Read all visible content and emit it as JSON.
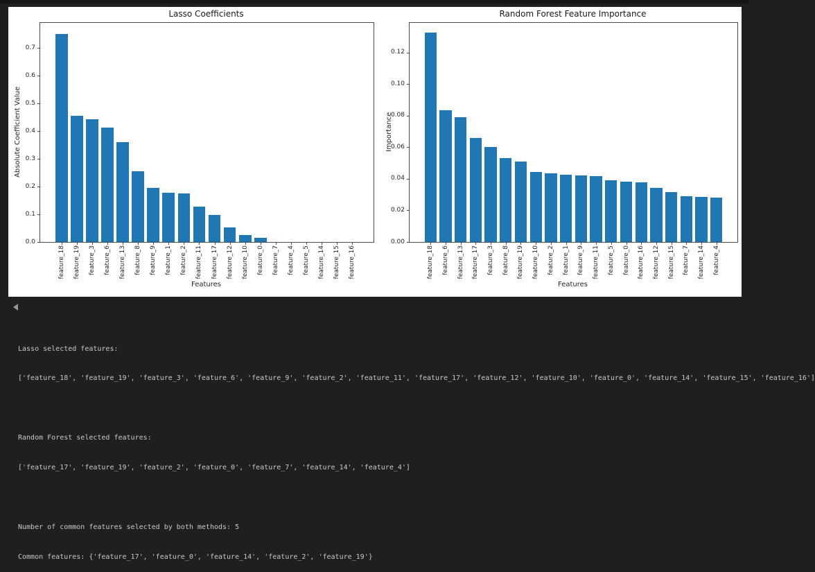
{
  "colors": {
    "background": "#1f1f1f",
    "figure_background": "#ffffff",
    "bar": "#1f77b4",
    "console_text": "#c9c9c9"
  },
  "chart_data": [
    {
      "type": "bar",
      "title": "Lasso Coefficients",
      "xlabel": "Features",
      "ylabel": "Absolute Coefficient Value",
      "categories": [
        "feature_18",
        "feature_19",
        "feature_3",
        "feature_6",
        "feature_13",
        "feature_8",
        "feature_9",
        "feature_1",
        "feature_2",
        "feature_11",
        "feature_17",
        "feature_12",
        "feature_10",
        "feature_0",
        "feature_7",
        "feature_4",
        "feature_5",
        "feature_14",
        "feature_15",
        "feature_16"
      ],
      "values": [
        0.751,
        0.456,
        0.443,
        0.413,
        0.361,
        0.256,
        0.194,
        0.178,
        0.174,
        0.127,
        0.098,
        0.053,
        0.025,
        0.016,
        0,
        0,
        0,
        0,
        0,
        0
      ],
      "ylim": [
        0,
        0.79
      ],
      "yticks": [
        0.0,
        0.1,
        0.2,
        0.3,
        0.4,
        0.5,
        0.6,
        0.7
      ],
      "ytick_labels": [
        "0.0",
        "0.1",
        "0.2",
        "0.3",
        "0.4",
        "0.5",
        "0.6",
        "0.7"
      ],
      "xtick_rotation": 90,
      "grid": false,
      "legend": null,
      "bar_color": "#1f77b4"
    },
    {
      "type": "bar",
      "title": "Random Forest Feature Importance",
      "xlabel": "Features",
      "ylabel": "Importance",
      "categories": [
        "feature_18",
        "feature_6",
        "feature_13",
        "feature_17",
        "feature_3",
        "feature_8",
        "feature_19",
        "feature_10",
        "feature_2",
        "feature_1",
        "feature_9",
        "feature_11",
        "feature_5",
        "feature_0",
        "feature_16",
        "feature_12",
        "feature_15",
        "feature_7",
        "feature_14",
        "feature_4"
      ],
      "values": [
        0.1325,
        0.0836,
        0.0791,
        0.0661,
        0.0601,
        0.0531,
        0.0511,
        0.0443,
        0.0433,
        0.0428,
        0.0422,
        0.0416,
        0.0391,
        0.0381,
        0.0376,
        0.0342,
        0.0315,
        0.0289,
        0.0286,
        0.0282
      ],
      "ylim": [
        0,
        0.1388
      ],
      "yticks": [
        0.0,
        0.02,
        0.04,
        0.06,
        0.08,
        0.1,
        0.12
      ],
      "ytick_labels": [
        "0.00",
        "0.02",
        "0.04",
        "0.06",
        "0.08",
        "0.10",
        "0.12"
      ],
      "xtick_rotation": 90,
      "grid": false,
      "legend": null,
      "bar_color": "#1f77b4"
    }
  ],
  "console": {
    "lines": [
      "Lasso selected features:",
      "['feature_18', 'feature_19', 'feature_3', 'feature_6', 'feature_9', 'feature_2', 'feature_11', 'feature_17', 'feature_12', 'feature_10', 'feature_0', 'feature_14', 'feature_15', 'feature_16']",
      "",
      "Random Forest selected features:",
      "['feature_17', 'feature_19', 'feature_2', 'feature_0', 'feature_7', 'feature_14', 'feature_4']",
      "",
      "Number of common features selected by both methods: 5",
      "Common features: {'feature_17', 'feature_0', 'feature_14', 'feature_2', 'feature_19'}"
    ]
  }
}
